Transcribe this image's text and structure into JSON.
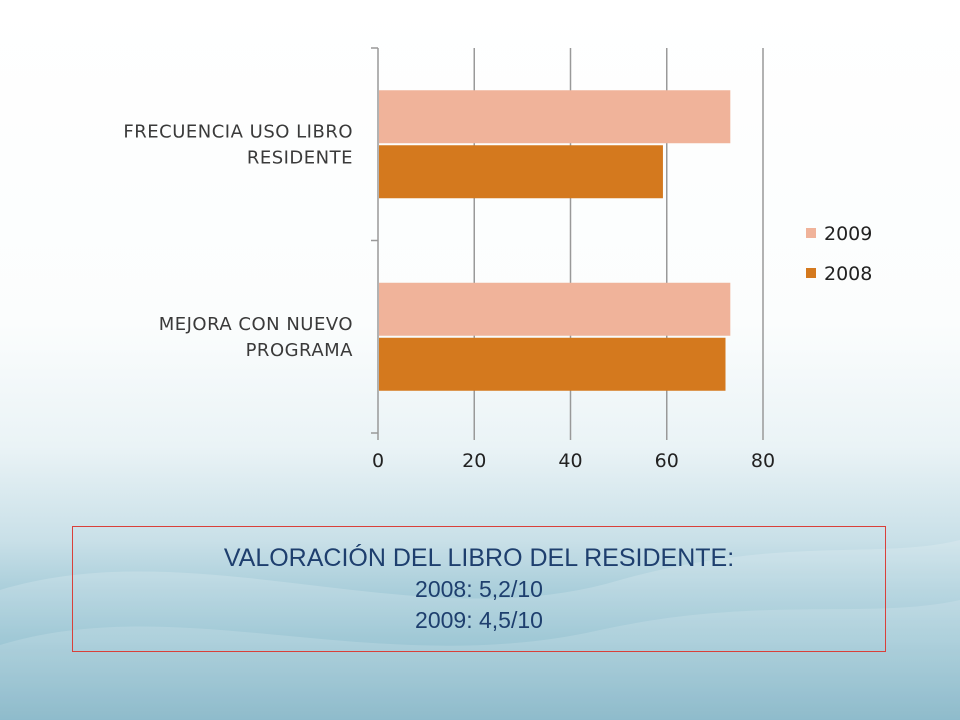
{
  "colors": {
    "2009": "#f0b39a",
    "2008": "#d4791e",
    "box_border": "#d9403a",
    "box_text": "#1e3f6e"
  },
  "chart_data": {
    "type": "bar",
    "orientation": "horizontal",
    "categories": [
      "FRECUENCIA USO LIBRO RESIDENTE",
      "MEJORA CON NUEVO PROGRAMA"
    ],
    "category_lines": [
      [
        "FRECUENCIA USO LIBRO",
        "RESIDENTE"
      ],
      [
        "MEJORA CON NUEVO",
        "PROGRAMA"
      ]
    ],
    "series": [
      {
        "name": "2009",
        "values": [
          73,
          73
        ]
      },
      {
        "name": "2008",
        "values": [
          59,
          72
        ]
      }
    ],
    "xlim": [
      0,
      80
    ],
    "xticks": [
      0,
      20,
      40,
      60,
      80
    ],
    "grid": true,
    "legend": "right"
  },
  "info_box": {
    "title": "VALORACIÓN DEL LIBRO DEL RESIDENTE:",
    "line1": "2008: 5,2/10",
    "line2": "2009: 4,5/10"
  }
}
